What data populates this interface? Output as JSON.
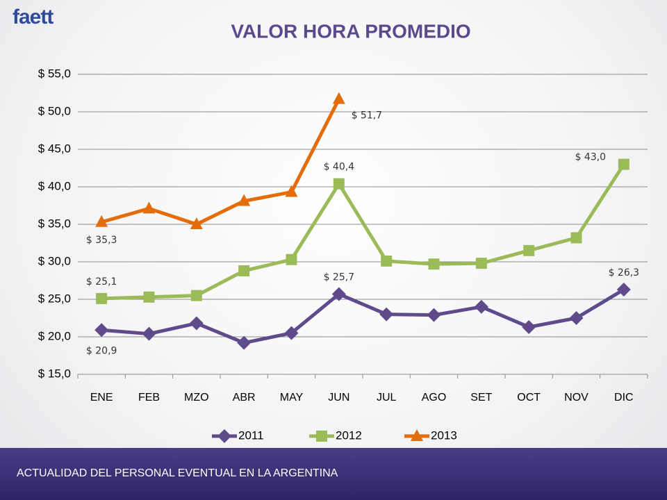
{
  "logo": "faett",
  "footer": "ACTUALIDAD DEL PERSONAL EVENTUAL EN LA ARGENTINA",
  "chart_data": {
    "type": "line",
    "title": "VALOR HORA PROMEDIO",
    "categories": [
      "ENE",
      "FEB",
      "MZO",
      "ABR",
      "MAY",
      "JUN",
      "JUL",
      "AGO",
      "SET",
      "OCT",
      "NOV",
      "DIC"
    ],
    "ylim": [
      15,
      55
    ],
    "yticks": [
      {
        "value": 15,
        "label": "$ 15,0"
      },
      {
        "value": 20,
        "label": "$ 20,0"
      },
      {
        "value": 25,
        "label": "$ 25,0"
      },
      {
        "value": 30,
        "label": "$ 30,0"
      },
      {
        "value": 35,
        "label": "$ 35,0"
      },
      {
        "value": 40,
        "label": "$ 40,0"
      },
      {
        "value": 45,
        "label": "$ 45,0"
      },
      {
        "value": 50,
        "label": "$ 50,0"
      },
      {
        "value": 55,
        "label": "$ 55,0"
      }
    ],
    "grid": true,
    "legend": "bottom",
    "series": [
      {
        "name": "2011",
        "color": "#5f4b8b",
        "marker": "diamond",
        "values": [
          20.9,
          20.4,
          21.8,
          19.2,
          20.5,
          25.7,
          23.0,
          22.9,
          24.0,
          21.3,
          22.5,
          26.3
        ],
        "value_labels": [
          "$ 20,9",
          null,
          null,
          null,
          null,
          "$ 25,7",
          null,
          null,
          null,
          null,
          null,
          "$ 26,3"
        ]
      },
      {
        "name": "2012",
        "color": "#9bbb59",
        "marker": "square",
        "values": [
          25.1,
          25.3,
          25.5,
          28.8,
          30.3,
          40.4,
          30.1,
          29.7,
          29.8,
          31.5,
          33.2,
          43.0
        ],
        "value_labels": [
          "$ 25,1",
          null,
          null,
          null,
          null,
          "$ 40,4",
          null,
          null,
          null,
          null,
          null,
          "$ 43,0"
        ]
      },
      {
        "name": "2013",
        "color": "#e46c0a",
        "marker": "triangle",
        "values": [
          35.3,
          37.1,
          35.0,
          38.1,
          39.3,
          51.7,
          null,
          null,
          null,
          null,
          null,
          null
        ],
        "value_labels": [
          "$ 35,3",
          null,
          null,
          null,
          null,
          "$ 51,7",
          null,
          null,
          null,
          null,
          null,
          null
        ]
      }
    ]
  }
}
